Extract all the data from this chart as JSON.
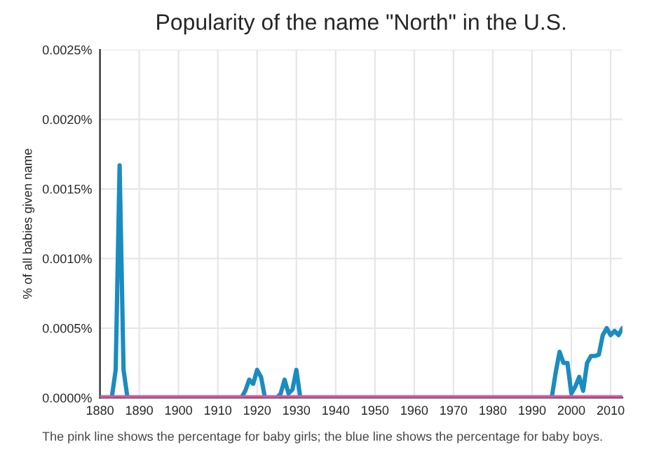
{
  "chart_data": {
    "type": "line",
    "title": "Popularity of the name \"North\" in the U.S.",
    "ylabel": "% of all babies given name",
    "annotations": [
      "The pink line shows the percentage for baby girls; the blue line shows the percentage for baby boys."
    ],
    "series": [
      {
        "color": "#d9559a",
        "x": [
          1880,
          2013
        ],
        "values": [
          0,
          0
        ]
      },
      {
        "color": "#1a8cc0",
        "x": [
          1880,
          1883,
          1884,
          1885,
          1886,
          1887,
          1916,
          1917,
          1918,
          1919,
          1920,
          1921,
          1922,
          1925,
          1926,
          1927,
          1928,
          1929,
          1930,
          1931,
          1995,
          1996,
          1997,
          1998,
          1999,
          2000,
          2001,
          2002,
          2003,
          2004,
          2005,
          2006,
          2007,
          2008,
          2009,
          2010,
          2011,
          2012,
          2013
        ],
        "values": [
          0,
          0,
          0.0002,
          0.00167,
          0.0002,
          0,
          0,
          5e-05,
          0.00013,
          0.0001,
          0.0002,
          0.00015,
          0,
          0,
          3e-05,
          0.00013,
          3e-05,
          6e-05,
          0.0002,
          0,
          0,
          0.00018,
          0.00033,
          0.00025,
          0.00025,
          3e-05,
          8e-05,
          0.00015,
          5e-05,
          0.00025,
          0.0003,
          0.0003,
          0.00031,
          0.00045,
          0.0005,
          0.00045,
          0.00048,
          0.00045,
          0.0005
        ]
      }
    ],
    "xlim": [
      1880,
      2013
    ],
    "xticks": [
      1880,
      1890,
      1900,
      1910,
      1920,
      1930,
      1940,
      1950,
      1960,
      1970,
      1980,
      1990,
      2000,
      2010
    ],
    "ylim": [
      0,
      0.0025
    ],
    "yticks": [
      {
        "value": 0,
        "label": "0.0000%"
      },
      {
        "value": 0.0005,
        "label": "0.0005%"
      },
      {
        "value": 0.001,
        "label": "0.0010%"
      },
      {
        "value": 0.0015,
        "label": "0.0015%"
      },
      {
        "value": 0.002,
        "label": "0.0020%"
      },
      {
        "value": 0.0025,
        "label": "0.0025%"
      }
    ],
    "grid": true,
    "line_style": "solid",
    "marker": "none"
  }
}
